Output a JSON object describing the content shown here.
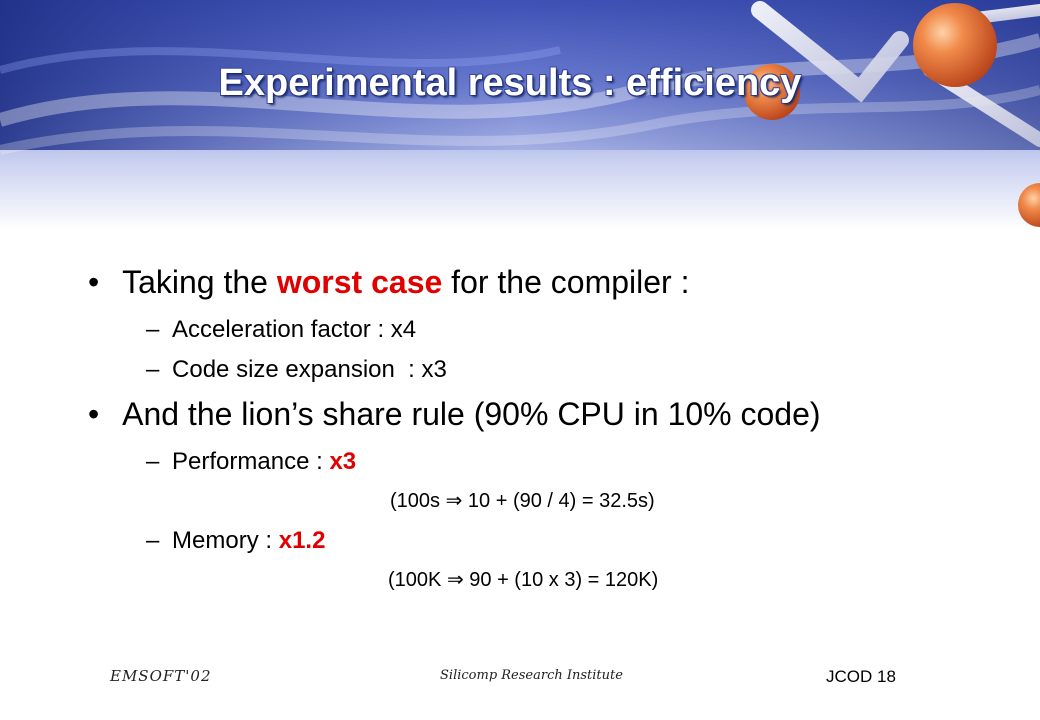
{
  "slide": {
    "title": "Experimental results : efficiency",
    "bullets": [
      {
        "prefix": "Taking the ",
        "emphasis": "worst case",
        "suffix": " for the compiler :",
        "subitems": [
          {
            "text": "Acceleration factor : x4"
          },
          {
            "text": "Code size expansion  : x3"
          }
        ]
      },
      {
        "text": "And the lion’s share rule (90% CPU in 10% code)",
        "subitems": [
          {
            "label": "Performance : ",
            "emphasis": "x3",
            "note_pre": "(100s ",
            "note_post": " 10 + (90 / 4) = 32.5s)"
          },
          {
            "label": "Memory : ",
            "emphasis": "x1.2",
            "note_pre": "(100K ",
            "note_post": " 90 + (10 x 3) = 120K)"
          }
        ]
      }
    ],
    "bullet_symbol": "•",
    "dash_symbol": "–",
    "implies_symbol": "⇒"
  },
  "footer": {
    "left": "EMSOFT'02",
    "center": "Silicomp Research Institute",
    "right": "JCOD 18"
  },
  "colors": {
    "emphasis": "#e00000",
    "header_blue": "#2b3d9a",
    "sphere_orange": "#e06a2c"
  }
}
